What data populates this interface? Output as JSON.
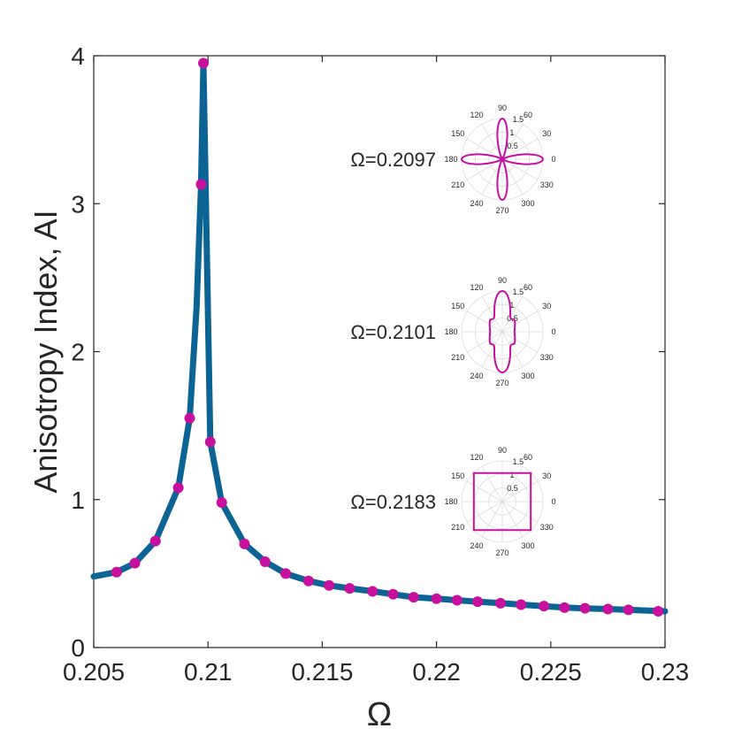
{
  "chart_data": {
    "type": "line",
    "title": "",
    "xlabel": "Ω",
    "ylabel": "Anisotropy Index, AI",
    "xlim": [
      0.205,
      0.23
    ],
    "ylim": [
      0,
      4
    ],
    "xticks": [
      "0.205",
      "0.21",
      "0.215",
      "0.22",
      "0.225",
      "0.23"
    ],
    "yticks": [
      "0",
      "1",
      "2",
      "3",
      "4"
    ],
    "grid": false,
    "series": [
      {
        "name": "AI curve",
        "color": "#0b6494",
        "x": [
          0.205,
          0.206,
          0.2068,
          0.2077,
          0.2087,
          0.2092,
          0.2095,
          0.2097,
          0.2098,
          0.2101,
          0.2106,
          0.2116,
          0.2125,
          0.2134,
          0.2144,
          0.2153,
          0.2162,
          0.2172,
          0.2181,
          0.219,
          0.22,
          0.2209,
          0.2218,
          0.2228,
          0.2237,
          0.2247,
          0.2256,
          0.2265,
          0.2275,
          0.2284,
          0.23
        ],
        "y": [
          0.48,
          0.51,
          0.57,
          0.72,
          1.08,
          1.55,
          2.3,
          3.13,
          3.95,
          1.39,
          0.98,
          0.7,
          0.58,
          0.5,
          0.45,
          0.42,
          0.4,
          0.38,
          0.36,
          0.34,
          0.33,
          0.32,
          0.31,
          0.3,
          0.29,
          0.28,
          0.27,
          0.265,
          0.26,
          0.255,
          0.245
        ]
      },
      {
        "name": "markers",
        "color": "#c8109e",
        "x": [
          0.206,
          0.2068,
          0.2077,
          0.2087,
          0.2092,
          0.2097,
          0.2098,
          0.2101,
          0.2106,
          0.2116,
          0.2125,
          0.2134,
          0.2144,
          0.2153,
          0.2162,
          0.2172,
          0.2181,
          0.219,
          0.22,
          0.2209,
          0.2218,
          0.2228,
          0.2237,
          0.2247,
          0.2256,
          0.2265,
          0.2275,
          0.2284,
          0.2297
        ],
        "y": [
          0.51,
          0.57,
          0.72,
          1.08,
          1.55,
          3.13,
          3.95,
          1.39,
          0.98,
          0.7,
          0.58,
          0.5,
          0.45,
          0.42,
          0.4,
          0.38,
          0.36,
          0.34,
          0.33,
          0.32,
          0.31,
          0.3,
          0.29,
          0.28,
          0.27,
          0.265,
          0.26,
          0.255,
          0.245
        ]
      }
    ],
    "insets": [
      {
        "label": "Ω=0.2097",
        "shape": "cross",
        "at_y": 3.3
      },
      {
        "label": "Ω=0.2101",
        "shape": "star",
        "at_y": 2.2
      },
      {
        "label": "Ω=0.2183",
        "shape": "square",
        "at_y": 1.0
      }
    ],
    "polar": {
      "angle_labels": [
        "90",
        "60",
        "30",
        "0",
        "330",
        "300",
        "270",
        "240",
        "210",
        "180",
        "150",
        "120"
      ],
      "radius_labels": [
        "0.5",
        "1",
        "1.5"
      ],
      "rmax": 1.5
    }
  }
}
